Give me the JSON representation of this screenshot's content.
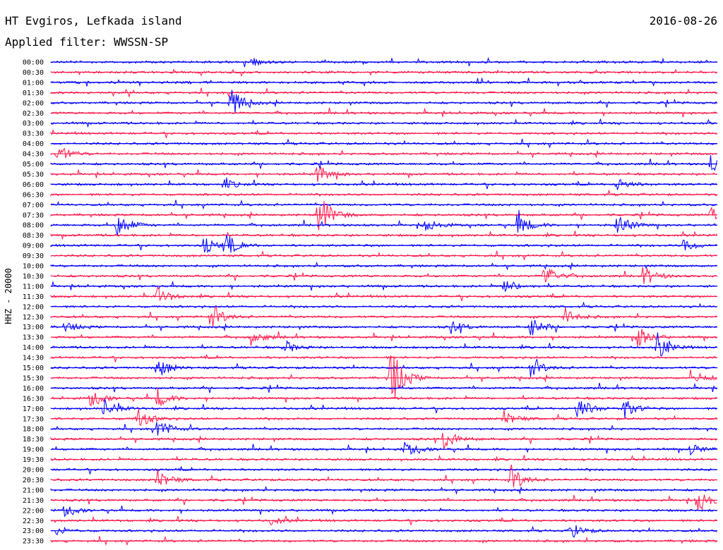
{
  "header": {
    "station": "HT Evgiros, Lefkada island",
    "date": "2016-08-26",
    "filter": "Applied filter: WWSSN-SP"
  },
  "chart_data": {
    "type": "line",
    "title": "HT Evgiros, Lefkada island",
    "ylabel": "HHZ - 20000",
    "row_labels": [
      "00:00",
      "00:30",
      "01:00",
      "01:30",
      "02:00",
      "02:30",
      "03:00",
      "03:30",
      "04:00",
      "04:30",
      "05:00",
      "05:30",
      "06:00",
      "06:30",
      "07:00",
      "07:30",
      "08:00",
      "08:30",
      "09:00",
      "09:30",
      "10:00",
      "10:30",
      "11:00",
      "11:30",
      "12:00",
      "12:30",
      "13:00",
      "13:30",
      "14:00",
      "14:30",
      "15:00",
      "15:30",
      "16:00",
      "16:30",
      "17:00",
      "17:30",
      "18:00",
      "18:30",
      "19:00",
      "19:30",
      "20:00",
      "20:30",
      "21:00",
      "21:30",
      "22:00",
      "22:30",
      "23:00",
      "23:30"
    ],
    "row_minutes": 30,
    "colors": {
      "even_rows": "#0000ff",
      "odd_rows": "#ff1a4d"
    },
    "events": [
      {
        "row": 0,
        "t": 0.3,
        "amp": 6
      },
      {
        "row": 4,
        "t": 0.27,
        "amp": 22
      },
      {
        "row": 9,
        "t": 0.01,
        "amp": 14
      },
      {
        "row": 10,
        "t": 0.99,
        "amp": 12
      },
      {
        "row": 12,
        "t": 0.26,
        "amp": 8
      },
      {
        "row": 12,
        "t": 0.85,
        "amp": 10
      },
      {
        "row": 11,
        "t": 0.4,
        "amp": 14
      },
      {
        "row": 15,
        "t": 0.4,
        "amp": 40
      },
      {
        "row": 16,
        "t": 0.1,
        "amp": 20
      },
      {
        "row": 16,
        "t": 0.56,
        "amp": 12
      },
      {
        "row": 16,
        "t": 0.7,
        "amp": 18
      },
      {
        "row": 16,
        "t": 0.85,
        "amp": 18
      },
      {
        "row": 15,
        "t": 0.99,
        "amp": 12
      },
      {
        "row": 18,
        "t": 0.23,
        "amp": 12
      },
      {
        "row": 18,
        "t": 0.26,
        "amp": 18
      },
      {
        "row": 18,
        "t": 0.95,
        "amp": 10
      },
      {
        "row": 21,
        "t": 0.74,
        "amp": 18
      },
      {
        "row": 21,
        "t": 0.89,
        "amp": 14
      },
      {
        "row": 22,
        "t": 0.68,
        "amp": 12
      },
      {
        "row": 23,
        "t": 0.16,
        "amp": 14
      },
      {
        "row": 25,
        "t": 0.24,
        "amp": 18
      },
      {
        "row": 25,
        "t": 0.77,
        "amp": 14
      },
      {
        "row": 26,
        "t": 0.02,
        "amp": 8
      },
      {
        "row": 26,
        "t": 0.6,
        "amp": 10
      },
      {
        "row": 26,
        "t": 0.72,
        "amp": 14
      },
      {
        "row": 27,
        "t": 0.3,
        "amp": 12
      },
      {
        "row": 27,
        "t": 0.88,
        "amp": 18
      },
      {
        "row": 28,
        "t": 0.35,
        "amp": 10
      },
      {
        "row": 28,
        "t": 0.91,
        "amp": 18
      },
      {
        "row": 30,
        "t": 0.16,
        "amp": 16
      },
      {
        "row": 30,
        "t": 0.72,
        "amp": 14
      },
      {
        "row": 31,
        "t": 0.51,
        "amp": 46
      },
      {
        "row": 31,
        "t": 0.96,
        "amp": 12
      },
      {
        "row": 33,
        "t": 0.06,
        "amp": 12
      },
      {
        "row": 33,
        "t": 0.16,
        "amp": 14
      },
      {
        "row": 34,
        "t": 0.08,
        "amp": 14
      },
      {
        "row": 34,
        "t": 0.79,
        "amp": 18
      },
      {
        "row": 34,
        "t": 0.86,
        "amp": 14
      },
      {
        "row": 35,
        "t": 0.13,
        "amp": 16
      },
      {
        "row": 35,
        "t": 0.68,
        "amp": 12
      },
      {
        "row": 36,
        "t": 0.16,
        "amp": 16
      },
      {
        "row": 37,
        "t": 0.59,
        "amp": 18
      },
      {
        "row": 38,
        "t": 0.53,
        "amp": 12
      },
      {
        "row": 38,
        "t": 0.96,
        "amp": 8
      },
      {
        "row": 41,
        "t": 0.16,
        "amp": 16
      },
      {
        "row": 41,
        "t": 0.69,
        "amp": 20
      },
      {
        "row": 43,
        "t": 0.97,
        "amp": 22
      },
      {
        "row": 44,
        "t": 0.02,
        "amp": 8
      },
      {
        "row": 45,
        "t": 0.33,
        "amp": 6
      },
      {
        "row": 46,
        "t": 0.01,
        "amp": 6
      },
      {
        "row": 46,
        "t": 0.78,
        "amp": 12
      }
    ]
  }
}
